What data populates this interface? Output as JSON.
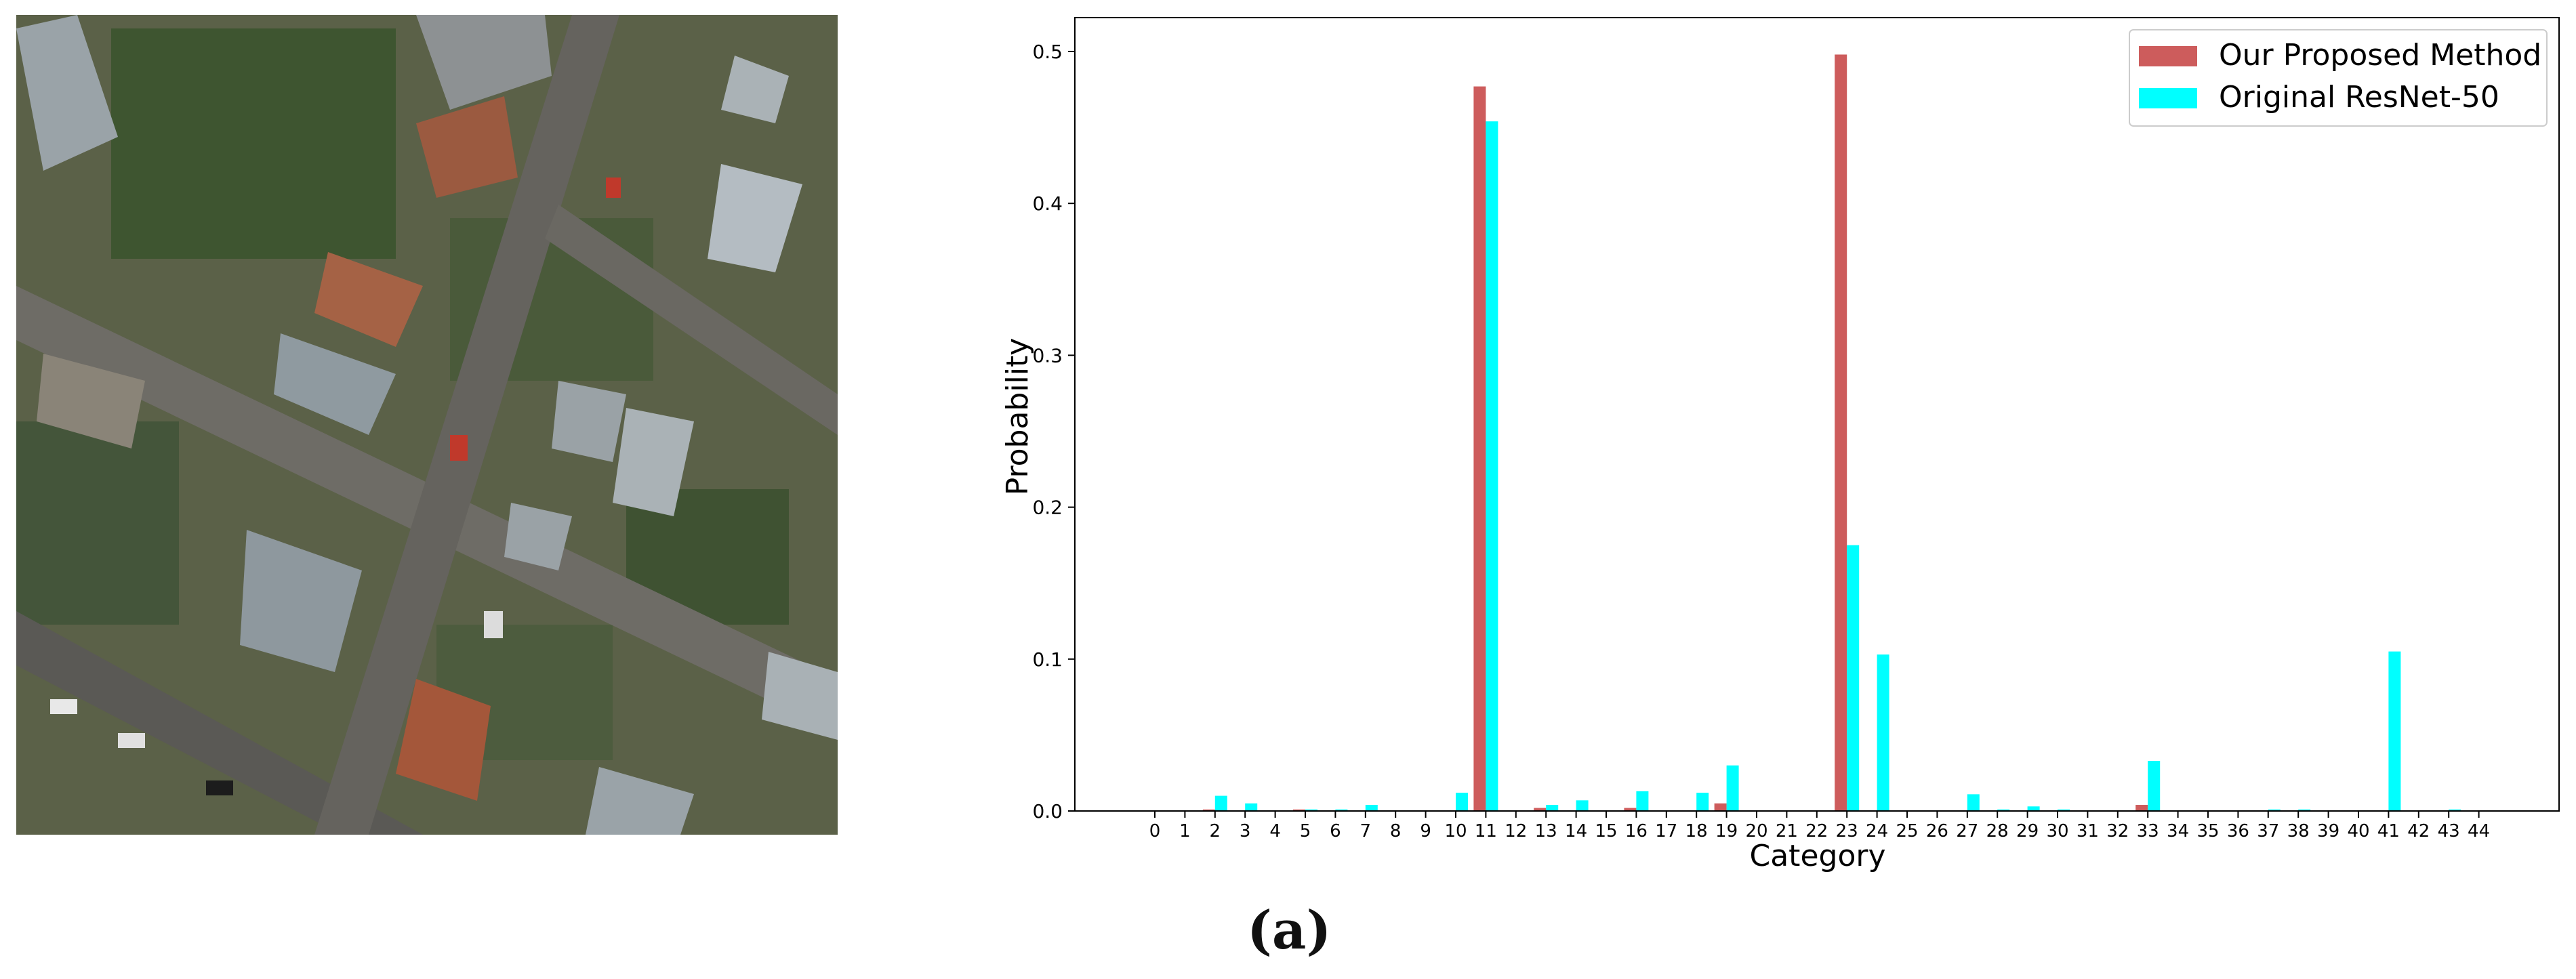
{
  "figure": {
    "caption": "(a)",
    "image_description_name": "aerial-neighborhood-image"
  },
  "chart_data": {
    "type": "bar",
    "xlabel": "Category",
    "ylabel": "Probability",
    "ylim": [
      0,
      0.52
    ],
    "yticks": [
      0.0,
      0.1,
      0.2,
      0.3,
      0.4,
      0.5
    ],
    "ytick_labels": [
      "0.0",
      "0.1",
      "0.2",
      "0.3",
      "0.4",
      "0.5"
    ],
    "categories": [
      "0",
      "1",
      "2",
      "3",
      "4",
      "5",
      "6",
      "7",
      "8",
      "9",
      "10",
      "11",
      "12",
      "13",
      "14",
      "15",
      "16",
      "17",
      "18",
      "19",
      "20",
      "21",
      "22",
      "23",
      "24",
      "25",
      "26",
      "27",
      "28",
      "29",
      "30",
      "31",
      "32",
      "33",
      "34",
      "35",
      "36",
      "37",
      "38",
      "39",
      "40",
      "41",
      "42",
      "43",
      "44"
    ],
    "legend_position": "top-right",
    "series": [
      {
        "name": "Our Proposed Method",
        "color": "#cd5c5c",
        "values": [
          0,
          0,
          0.001,
          0,
          0,
          0.001,
          0,
          0,
          0,
          0,
          0,
          0.477,
          0,
          0.002,
          0,
          0,
          0.002,
          0,
          0,
          0.005,
          0,
          0,
          0,
          0.498,
          0,
          0,
          0,
          0,
          0,
          0,
          0,
          0,
          0,
          0.004,
          0,
          0,
          0,
          0,
          0,
          0,
          0,
          0,
          0,
          0,
          0
        ]
      },
      {
        "name": "Original ResNet-50",
        "color": "#00ffff",
        "values": [
          0,
          0,
          0.01,
          0.005,
          0,
          0.001,
          0.001,
          0.004,
          0,
          0,
          0.012,
          0.454,
          0,
          0.004,
          0.007,
          0,
          0.013,
          0,
          0.012,
          0.03,
          0,
          0,
          0,
          0.175,
          0.103,
          0,
          0,
          0.011,
          0.001,
          0.003,
          0.001,
          0,
          0,
          0.033,
          0,
          0,
          0,
          0.001,
          0.001,
          0,
          0,
          0.105,
          0,
          0.001,
          0
        ]
      }
    ]
  }
}
